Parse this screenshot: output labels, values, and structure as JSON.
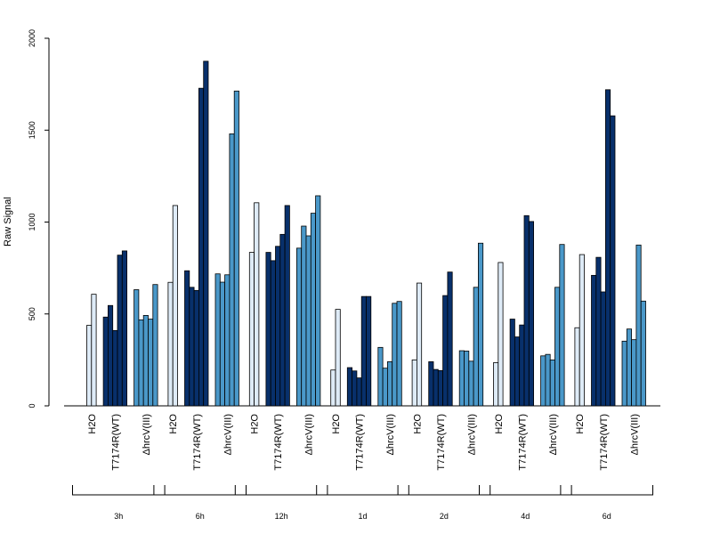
{
  "chart_data": {
    "type": "bar",
    "ylabel": "Raw Signal",
    "ylim": [
      0,
      2000
    ],
    "yticks": [
      "0",
      "500",
      "1000",
      "1500",
      "2000"
    ],
    "grid": false,
    "category_labels": [
      "H2O",
      "T7174R(WT)",
      "ΔhrcV(III)"
    ],
    "category_colors": [
      "#deebf7",
      "#08306b",
      "#4a98c9"
    ],
    "groups": [
      {
        "label": "3h",
        "series": [
          {
            "category": "H2O",
            "values": [
              438,
              607
            ]
          },
          {
            "category": "T7174R(WT)",
            "values": [
              483,
              546,
              410,
              820,
              843
            ]
          },
          {
            "category": "ΔhrcV(III)",
            "values": [
              632,
              468,
              492,
              472,
              660
            ]
          }
        ]
      },
      {
        "label": "6h",
        "series": [
          {
            "category": "H2O",
            "values": [
              672,
              1090
            ]
          },
          {
            "category": "T7174R(WT)",
            "values": [
              735,
              645,
              628,
              1728,
              1875
            ]
          },
          {
            "category": "ΔhrcV(III)",
            "values": [
              718,
              673,
              713,
              1480,
              1713
            ]
          }
        ]
      },
      {
        "label": "12h",
        "series": [
          {
            "category": "H2O",
            "values": [
              835,
              1105
            ]
          },
          {
            "category": "T7174R(WT)",
            "values": [
              835,
              790,
              868,
              933,
              1090
            ]
          },
          {
            "category": "ΔhrcV(III)",
            "values": [
              858,
              978,
              925,
              1048,
              1143
            ]
          }
        ]
      },
      {
        "label": "1d",
        "series": [
          {
            "category": "H2O",
            "values": [
              195,
              525
            ]
          },
          {
            "category": "T7174R(WT)",
            "values": [
              208,
              190,
              152,
              595,
              595
            ]
          },
          {
            "category": "ΔhrcV(III)",
            "values": [
              318,
              205,
              240,
              558,
              568
            ]
          }
        ]
      },
      {
        "label": "2d",
        "series": [
          {
            "category": "H2O",
            "values": [
              250,
              668
            ]
          },
          {
            "category": "T7174R(WT)",
            "values": [
              240,
              198,
              192,
              600,
              728
            ]
          },
          {
            "category": "ΔhrcV(III)",
            "values": [
              300,
              298,
              243,
              645,
              885
            ]
          }
        ]
      },
      {
        "label": "4d",
        "series": [
          {
            "category": "H2O",
            "values": [
              235,
              780
            ]
          },
          {
            "category": "T7174R(WT)",
            "values": [
              472,
              375,
              440,
              1035,
              1003
            ]
          },
          {
            "category": "ΔhrcV(III)",
            "values": [
              272,
              280,
              250,
              645,
              878
            ]
          }
        ]
      },
      {
        "label": "6d",
        "series": [
          {
            "category": "H2O",
            "values": [
              425,
              823
            ]
          },
          {
            "category": "T7174R(WT)",
            "values": [
              710,
              808,
              620,
              1720,
              1578
            ]
          },
          {
            "category": "ΔhrcV(III)",
            "values": [
              352,
              418,
              360,
              875,
              570
            ]
          }
        ]
      }
    ]
  }
}
